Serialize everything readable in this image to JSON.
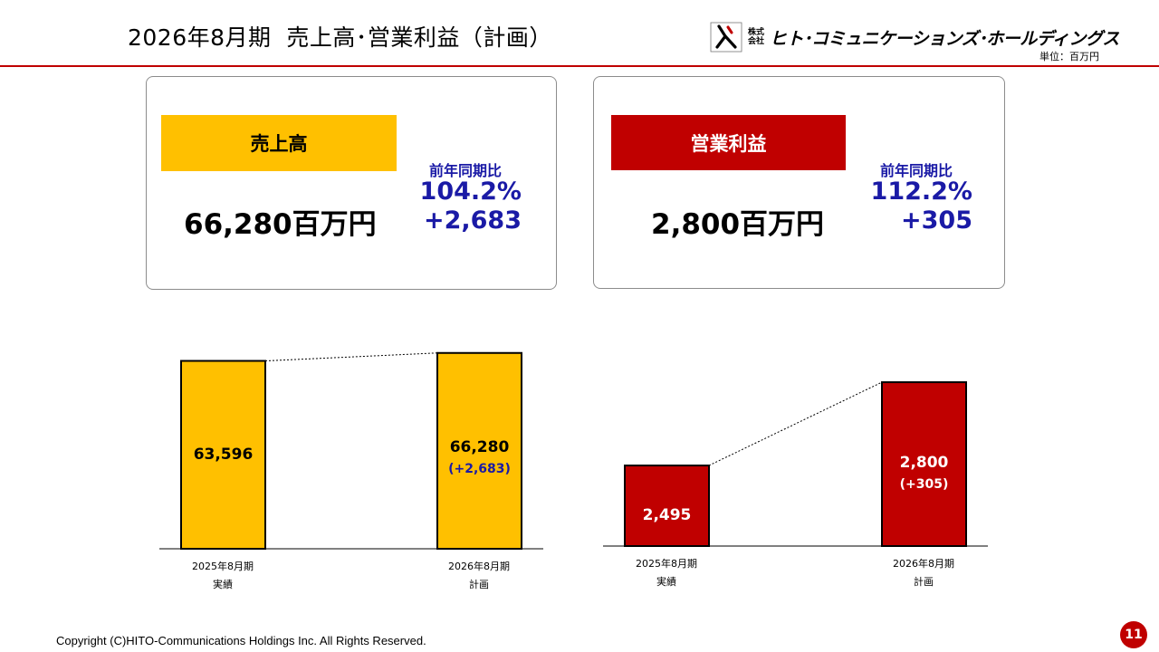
{
  "header": {
    "title": "2026年8月期  売上高･営業利益（計画）",
    "company_name": "ヒト･コミュニケーションズ･ホールディングス",
    "kabushiki_kaisha": "株式会社",
    "unit": "単位：百万円"
  },
  "cards": {
    "sales": {
      "label": "売上高",
      "value": "66,280百万円",
      "yoy_label": "前年同期比",
      "yoy_pct": "104.2%",
      "yoy_diff": "+2,683"
    },
    "profit": {
      "label": "営業利益",
      "value": "2,800百万円",
      "yoy_label": "前年同期比",
      "yoy_pct": "112.2%",
      "yoy_diff": "+305"
    }
  },
  "chart_data": [
    {
      "type": "bar",
      "title": "売上高",
      "categories": [
        [
          "2025年8月期",
          "実績"
        ],
        [
          "2026年8月期",
          "計画"
        ]
      ],
      "values": [
        63596,
        66280
      ],
      "value_labels": [
        "63,596",
        "66,280"
      ],
      "diff_label": "(+2,683)",
      "ylim": [
        0,
        70500
      ],
      "color": "#ffc000"
    },
    {
      "type": "bar",
      "title": "営業利益",
      "categories": [
        [
          "2025年8月期",
          "実績"
        ],
        [
          "2026年8月期",
          "計画"
        ]
      ],
      "values": [
        2495,
        2800
      ],
      "value_labels": [
        "2,495",
        "2,800"
      ],
      "diff_label": "(+305)",
      "ylim": [
        2200,
        2840
      ],
      "color": "#c00000"
    }
  ],
  "colors": {
    "accent_red": "#c00000",
    "sales_yellow": "#ffc000",
    "yoy_blue": "#1a1aa6"
  },
  "footer": {
    "copyright": "Copyright (C)HITO-Communications Holdings Inc. All Rights Reserved.",
    "page_number": "11"
  }
}
